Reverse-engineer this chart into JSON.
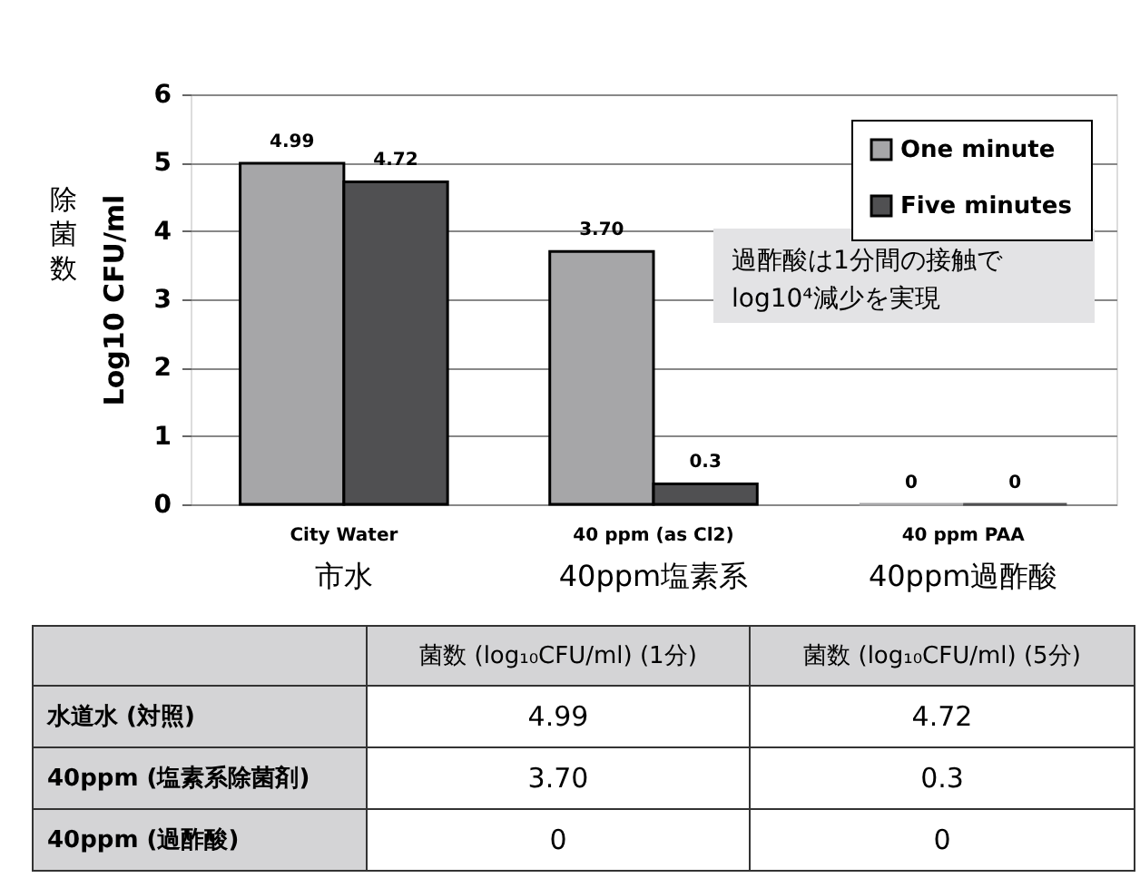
{
  "chart_data": {
    "type": "bar",
    "categories": [
      "City Water\n市水",
      "40 ppm (as Cl2)\n40ppm塩素系",
      "40 ppm PAA\n40ppm過酢酸"
    ],
    "series": [
      {
        "name": "One minute",
        "color": "#a6a6a8",
        "values": [
          4.99,
          3.7,
          0
        ],
        "value_labels": [
          "4.99",
          "3.70",
          "0"
        ]
      },
      {
        "name": "Five minutes",
        "color": "#505052",
        "values": [
          4.72,
          0.3,
          0
        ],
        "value_labels": [
          "4.72",
          "0.3",
          "0"
        ]
      }
    ],
    "ylabel": "Log10 CFU/ml",
    "ylim": [
      0,
      6
    ],
    "yticks": [
      0,
      1,
      2,
      3,
      4,
      5,
      6
    ],
    "grid": "y",
    "legend": "top right",
    "annotations": [
      "除菌数",
      "過酢酸は1分間の接触で\nlog10⁴減少を実現",
      "菌数 (log₁₀CFU/ml) (1分)",
      "菌数 (log₁₀CFU/ml) (5分)",
      "水道水 (対照)",
      "40ppm (塩素系除菌剤)",
      "40ppm (過酢酸)"
    ]
  }
}
